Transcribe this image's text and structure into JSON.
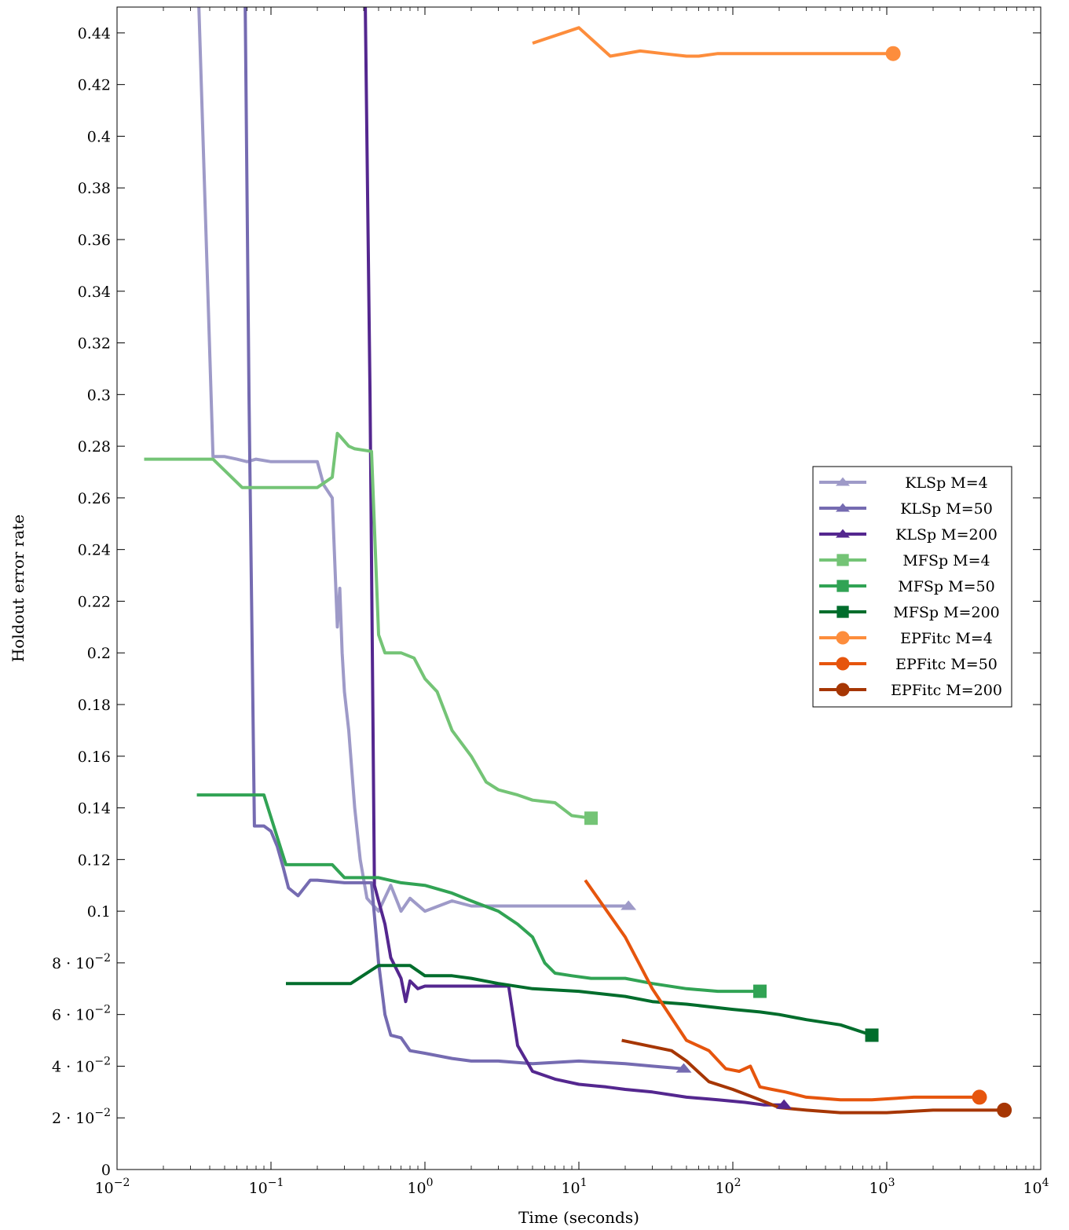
{
  "chart_data": {
    "type": "line",
    "title": "",
    "xlabel": "Time (seconds)",
    "ylabel": "Holdout error rate",
    "xscale": "log",
    "xlim": [
      0.01,
      10000
    ],
    "ylim": [
      0,
      0.45
    ],
    "x_ticks": [
      {
        "value": 0.01,
        "base": "10",
        "exp": "−2"
      },
      {
        "value": 0.1,
        "base": "10",
        "exp": "−1"
      },
      {
        "value": 1,
        "base": "10",
        "exp": "0"
      },
      {
        "value": 10,
        "base": "10",
        "exp": "1"
      },
      {
        "value": 100,
        "base": "10",
        "exp": "2"
      },
      {
        "value": 1000,
        "base": "10",
        "exp": "3"
      },
      {
        "value": 10000,
        "base": "10",
        "exp": "4"
      }
    ],
    "y_ticks": [
      {
        "value": 0,
        "label": "0"
      },
      {
        "value": 0.02,
        "label": "2 · 10",
        "exp": "−2"
      },
      {
        "value": 0.04,
        "label": "4 · 10",
        "exp": "−2"
      },
      {
        "value": 0.06,
        "label": "6 · 10",
        "exp": "−2"
      },
      {
        "value": 0.08,
        "label": "8 · 10",
        "exp": "−2"
      },
      {
        "value": 0.1,
        "label": "0.1"
      },
      {
        "value": 0.12,
        "label": "0.12"
      },
      {
        "value": 0.14,
        "label": "0.14"
      },
      {
        "value": 0.16,
        "label": "0.16"
      },
      {
        "value": 0.18,
        "label": "0.18"
      },
      {
        "value": 0.2,
        "label": "0.2"
      },
      {
        "value": 0.22,
        "label": "0.22"
      },
      {
        "value": 0.24,
        "label": "0.24"
      },
      {
        "value": 0.26,
        "label": "0.26"
      },
      {
        "value": 0.28,
        "label": "0.28"
      },
      {
        "value": 0.3,
        "label": "0.3"
      },
      {
        "value": 0.32,
        "label": "0.32"
      },
      {
        "value": 0.34,
        "label": "0.34"
      },
      {
        "value": 0.36,
        "label": "0.36"
      },
      {
        "value": 0.38,
        "label": "0.38"
      },
      {
        "value": 0.4,
        "label": "0.4"
      },
      {
        "value": 0.42,
        "label": "0.42"
      },
      {
        "value": 0.44,
        "label": "0.44"
      }
    ],
    "grid": false,
    "legend_position": "right",
    "series": [
      {
        "name": "KLSp M=4",
        "color": "#9e9ac8",
        "marker": "triangle",
        "x": [
          0.034,
          0.042,
          0.05,
          0.06,
          0.07,
          0.08,
          0.1,
          0.15,
          0.2,
          0.22,
          0.25,
          0.27,
          0.28,
          0.29,
          0.3,
          0.32,
          0.35,
          0.38,
          0.42,
          0.5,
          0.6,
          0.7,
          0.8,
          1.0,
          1.5,
          2.0,
          3,
          5,
          10,
          15,
          21
        ],
        "y": [
          0.45,
          0.276,
          0.276,
          0.275,
          0.274,
          0.275,
          0.274,
          0.274,
          0.274,
          0.265,
          0.26,
          0.21,
          0.225,
          0.2,
          0.185,
          0.17,
          0.14,
          0.12,
          0.105,
          0.1,
          0.11,
          0.1,
          0.105,
          0.1,
          0.104,
          0.102,
          0.102,
          0.102,
          0.102,
          0.102,
          0.102
        ]
      },
      {
        "name": "KLSp M=50",
        "color": "#756bb1",
        "marker": "triangle",
        "x": [
          0.068,
          0.072,
          0.078,
          0.09,
          0.1,
          0.11,
          0.12,
          0.13,
          0.15,
          0.18,
          0.2,
          0.3,
          0.45,
          0.5,
          0.55,
          0.6,
          0.7,
          0.8,
          1.0,
          1.5,
          2.0,
          3,
          5,
          10,
          20,
          30,
          48
        ],
        "y": [
          0.45,
          0.3,
          0.133,
          0.133,
          0.131,
          0.125,
          0.117,
          0.109,
          0.106,
          0.112,
          0.112,
          0.111,
          0.111,
          0.08,
          0.06,
          0.052,
          0.051,
          0.046,
          0.045,
          0.043,
          0.042,
          0.042,
          0.041,
          0.042,
          0.041,
          0.04,
          0.039
        ]
      },
      {
        "name": "KLSp M=200",
        "color": "#54278f",
        "marker": "triangle",
        "x": [
          0.41,
          0.44,
          0.47,
          0.5,
          0.55,
          0.6,
          0.7,
          0.75,
          0.8,
          0.9,
          1.0,
          1.5,
          2,
          3,
          3.5,
          4,
          5,
          7,
          10,
          15,
          20,
          30,
          50,
          80,
          120,
          160,
          215
        ],
        "y": [
          0.45,
          0.3,
          0.11,
          0.104,
          0.095,
          0.082,
          0.074,
          0.065,
          0.073,
          0.07,
          0.071,
          0.071,
          0.071,
          0.071,
          0.071,
          0.048,
          0.038,
          0.035,
          0.033,
          0.032,
          0.031,
          0.03,
          0.028,
          0.027,
          0.026,
          0.025,
          0.025
        ]
      },
      {
        "name": "MFSp M=4",
        "color": "#74c476",
        "marker": "square",
        "x": [
          0.015,
          0.042,
          0.065,
          0.1,
          0.2,
          0.25,
          0.27,
          0.28,
          0.32,
          0.35,
          0.45,
          0.5,
          0.55,
          0.7,
          0.85,
          1.0,
          1.2,
          1.5,
          2.0,
          2.5,
          3.0,
          4.0,
          5.0,
          7.0,
          9.0,
          12
        ],
        "y": [
          0.275,
          0.275,
          0.264,
          0.264,
          0.264,
          0.268,
          0.285,
          0.284,
          0.28,
          0.279,
          0.278,
          0.207,
          0.2,
          0.2,
          0.198,
          0.19,
          0.185,
          0.17,
          0.16,
          0.15,
          0.147,
          0.145,
          0.143,
          0.142,
          0.137,
          0.136
        ]
      },
      {
        "name": "MFSp M=50",
        "color": "#31a354",
        "marker": "square",
        "x": [
          0.033,
          0.09,
          0.125,
          0.25,
          0.3,
          0.35,
          0.5,
          0.7,
          1.0,
          1.5,
          2.0,
          3.0,
          4.0,
          5.0,
          6.0,
          7.0,
          9.0,
          12,
          20,
          30,
          50,
          80,
          100,
          150
        ],
        "y": [
          0.145,
          0.145,
          0.118,
          0.118,
          0.113,
          0.113,
          0.113,
          0.111,
          0.11,
          0.107,
          0.104,
          0.1,
          0.095,
          0.09,
          0.08,
          0.076,
          0.075,
          0.074,
          0.074,
          0.072,
          0.07,
          0.069,
          0.069,
          0.069
        ]
      },
      {
        "name": "MFSp M=200",
        "color": "#006d2c",
        "marker": "square",
        "x": [
          0.125,
          0.33,
          0.5,
          0.8,
          1.0,
          1.5,
          2,
          3,
          5,
          10,
          20,
          30,
          50,
          100,
          150,
          200,
          300,
          500,
          800
        ],
        "y": [
          0.072,
          0.072,
          0.079,
          0.079,
          0.075,
          0.075,
          0.074,
          0.072,
          0.07,
          0.069,
          0.067,
          0.065,
          0.064,
          0.062,
          0.061,
          0.06,
          0.058,
          0.056,
          0.052
        ]
      },
      {
        "name": "EPFitc M=4",
        "color": "#fd8d3c",
        "marker": "circle",
        "x": [
          5,
          10,
          16,
          25,
          35,
          50,
          60,
          80,
          100,
          120,
          200,
          500,
          700,
          1100
        ],
        "y": [
          0.436,
          0.442,
          0.431,
          0.433,
          0.432,
          0.431,
          0.431,
          0.432,
          0.432,
          0.432,
          0.432,
          0.432,
          0.432,
          0.432
        ]
      },
      {
        "name": "EPFitc M=50",
        "color": "#e6550d",
        "marker": "circle",
        "x": [
          11,
          20,
          30,
          50,
          70,
          90,
          110,
          130,
          150,
          180,
          220,
          300,
          500,
          800,
          1500,
          2500,
          4000
        ],
        "y": [
          0.112,
          0.09,
          0.07,
          0.05,
          0.046,
          0.039,
          0.038,
          0.04,
          0.032,
          0.031,
          0.03,
          0.028,
          0.027,
          0.027,
          0.028,
          0.028,
          0.028
        ]
      },
      {
        "name": "EPFitc M=200",
        "color": "#a63603",
        "marker": "circle",
        "x": [
          19,
          40,
          50,
          70,
          100,
          150,
          200,
          300,
          500,
          1000,
          2000,
          3000,
          5800
        ],
        "y": [
          0.05,
          0.046,
          0.042,
          0.034,
          0.031,
          0.027,
          0.024,
          0.023,
          0.022,
          0.022,
          0.023,
          0.023,
          0.023
        ]
      }
    ]
  }
}
